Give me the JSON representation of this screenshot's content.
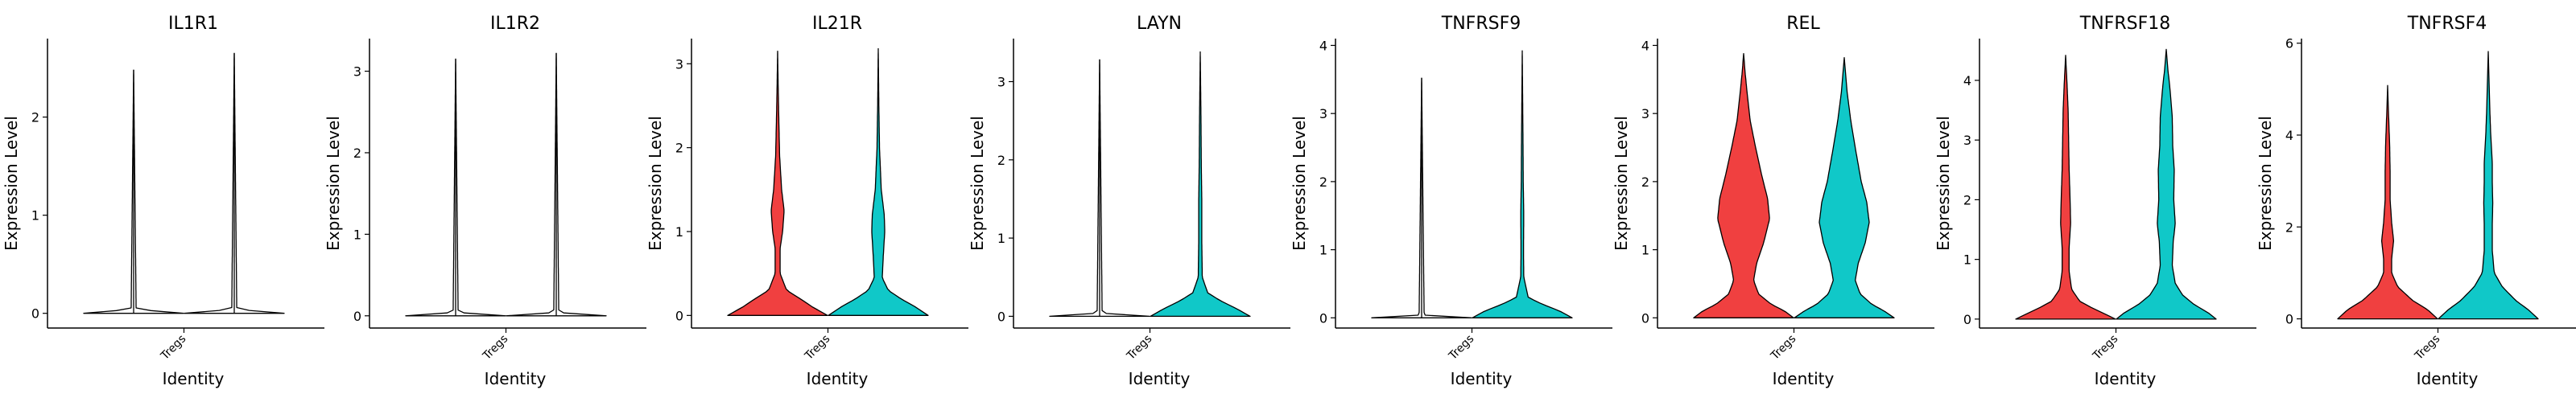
{
  "chart_data": [
    {
      "type": "violin",
      "title": "IL1R1",
      "xlabel": "Identity",
      "ylabel": "Expression Level",
      "categories": [
        "Tregs"
      ],
      "ylim": [
        -0.15,
        2.8
      ],
      "yticks": [
        0,
        1,
        2
      ],
      "series": [
        {
          "color": "#F04040",
          "max": 2.48,
          "profile": [
            [
              0,
              1.0
            ],
            [
              0.04,
              0.05
            ],
            [
              2.48,
              0.0
            ]
          ]
        },
        {
          "color": "#10C8C8",
          "max": 2.65,
          "profile": [
            [
              0,
              1.0
            ],
            [
              0.04,
              0.05
            ],
            [
              2.65,
              0.0
            ]
          ]
        }
      ]
    },
    {
      "type": "violin",
      "title": "IL1R2",
      "xlabel": "Identity",
      "ylabel": "Expression Level",
      "categories": [
        "Tregs"
      ],
      "ylim": [
        -0.15,
        3.4
      ],
      "yticks": [
        0,
        1,
        2,
        3
      ],
      "series": [
        {
          "color": "#F04040",
          "max": 3.15,
          "profile": [
            [
              0,
              1.0
            ],
            [
              0.04,
              0.05
            ],
            [
              3.15,
              0.0
            ]
          ]
        },
        {
          "color": "#10C8C8",
          "max": 3.22,
          "profile": [
            [
              0,
              1.0
            ],
            [
              0.04,
              0.05
            ],
            [
              3.22,
              0.0
            ]
          ]
        }
      ]
    },
    {
      "type": "violin",
      "title": "IL21R",
      "xlabel": "Identity",
      "ylabel": "Expression Level",
      "categories": [
        "Tregs"
      ],
      "ylim": [
        -0.15,
        3.3
      ],
      "yticks": [
        0,
        1,
        2,
        3
      ],
      "series": [
        {
          "color": "#F04040",
          "max": 3.15,
          "profile": [
            [
              0,
              1.0
            ],
            [
              0.1,
              0.7
            ],
            [
              0.2,
              0.45
            ],
            [
              0.3,
              0.18
            ],
            [
              0.5,
              0.05
            ],
            [
              0.8,
              0.05
            ],
            [
              1.0,
              0.1
            ],
            [
              1.25,
              0.13
            ],
            [
              1.5,
              0.08
            ],
            [
              1.9,
              0.04
            ],
            [
              2.3,
              0.025
            ],
            [
              2.7,
              0.012
            ],
            [
              3.15,
              0.0
            ]
          ]
        },
        {
          "color": "#10C8C8",
          "max": 3.18,
          "profile": [
            [
              0,
              1.0
            ],
            [
              0.1,
              0.75
            ],
            [
              0.2,
              0.45
            ],
            [
              0.3,
              0.2
            ],
            [
              0.45,
              0.08
            ],
            [
              0.7,
              0.1
            ],
            [
              1.0,
              0.13
            ],
            [
              1.2,
              0.12
            ],
            [
              1.5,
              0.06
            ],
            [
              2.0,
              0.025
            ],
            [
              2.5,
              0.012
            ],
            [
              3.18,
              0.0
            ]
          ]
        }
      ]
    },
    {
      "type": "violin",
      "title": "LAYN",
      "xlabel": "Identity",
      "ylabel": "Expression Level",
      "categories": [
        "Tregs"
      ],
      "ylim": [
        -0.15,
        3.55
      ],
      "yticks": [
        0,
        1,
        2,
        3
      ],
      "series": [
        {
          "color": "#F04040",
          "max": 3.28,
          "profile": [
            [
              0,
              1.0
            ],
            [
              0.04,
              0.05
            ],
            [
              3.28,
              0.0
            ]
          ]
        },
        {
          "color": "#10C8C8",
          "max": 3.38,
          "profile": [
            [
              0,
              1.0
            ],
            [
              0.1,
              0.72
            ],
            [
              0.2,
              0.4
            ],
            [
              0.3,
              0.15
            ],
            [
              0.5,
              0.04
            ],
            [
              1.0,
              0.03
            ],
            [
              1.5,
              0.03
            ],
            [
              2.0,
              0.02
            ],
            [
              2.5,
              0.015
            ],
            [
              3.38,
              0.0
            ]
          ]
        }
      ]
    },
    {
      "type": "violin",
      "title": "TNFRSF9",
      "xlabel": "Identity",
      "ylabel": "Expression Level",
      "categories": [
        "Tregs"
      ],
      "ylim": [
        -0.15,
        4.1
      ],
      "yticks": [
        0,
        1,
        2,
        3,
        4
      ],
      "series": [
        {
          "color": "#F04040",
          "max": 3.52,
          "profile": [
            [
              0,
              1.0
            ],
            [
              0.04,
              0.05
            ],
            [
              3.52,
              0.0
            ]
          ]
        },
        {
          "color": "#10C8C8",
          "max": 3.92,
          "profile": [
            [
              0,
              1.0
            ],
            [
              0.1,
              0.75
            ],
            [
              0.2,
              0.4
            ],
            [
              0.3,
              0.12
            ],
            [
              0.6,
              0.03
            ],
            [
              1.0,
              0.025
            ],
            [
              1.5,
              0.03
            ],
            [
              2.0,
              0.02
            ],
            [
              2.6,
              0.015
            ],
            [
              3.92,
              0.0
            ]
          ]
        }
      ]
    },
    {
      "type": "violin",
      "title": "REL",
      "xlabel": "Identity",
      "ylabel": "Expression Level",
      "categories": [
        "Tregs"
      ],
      "ylim": [
        -0.15,
        4.1
      ],
      "yticks": [
        0,
        1,
        2,
        3,
        4
      ],
      "series": [
        {
          "color": "#F04040",
          "max": 3.88,
          "profile": [
            [
              0,
              1.0
            ],
            [
              0.1,
              0.82
            ],
            [
              0.2,
              0.55
            ],
            [
              0.35,
              0.3
            ],
            [
              0.55,
              0.2
            ],
            [
              0.8,
              0.26
            ],
            [
              1.1,
              0.4
            ],
            [
              1.45,
              0.52
            ],
            [
              1.75,
              0.48
            ],
            [
              2.1,
              0.36
            ],
            [
              2.5,
              0.24
            ],
            [
              2.9,
              0.13
            ],
            [
              3.3,
              0.07
            ],
            [
              3.6,
              0.03
            ],
            [
              3.88,
              0.0
            ]
          ]
        },
        {
          "color": "#10C8C8",
          "max": 3.82,
          "profile": [
            [
              0,
              1.0
            ],
            [
              0.1,
              0.8
            ],
            [
              0.2,
              0.55
            ],
            [
              0.35,
              0.32
            ],
            [
              0.55,
              0.22
            ],
            [
              0.8,
              0.28
            ],
            [
              1.1,
              0.42
            ],
            [
              1.4,
              0.5
            ],
            [
              1.7,
              0.45
            ],
            [
              2.0,
              0.34
            ],
            [
              2.5,
              0.22
            ],
            [
              2.9,
              0.13
            ],
            [
              3.3,
              0.06
            ],
            [
              3.82,
              0.0
            ]
          ]
        }
      ]
    },
    {
      "type": "violin",
      "title": "TNFRSF18",
      "xlabel": "Identity",
      "ylabel": "Expression Level",
      "categories": [
        "Tregs"
      ],
      "ylim": [
        -0.15,
        4.7
      ],
      "yticks": [
        0,
        1,
        2,
        3,
        4
      ],
      "series": [
        {
          "color": "#F04040",
          "max": 4.42,
          "profile": [
            [
              0,
              1.0
            ],
            [
              0.1,
              0.75
            ],
            [
              0.2,
              0.5
            ],
            [
              0.3,
              0.28
            ],
            [
              0.5,
              0.12
            ],
            [
              0.8,
              0.07
            ],
            [
              1.2,
              0.07
            ],
            [
              1.6,
              0.1
            ],
            [
              2.0,
              0.09
            ],
            [
              2.5,
              0.07
            ],
            [
              3.0,
              0.06
            ],
            [
              3.5,
              0.05
            ],
            [
              4.0,
              0.025
            ],
            [
              4.42,
              0.0
            ]
          ]
        },
        {
          "color": "#10C8C8",
          "max": 4.52,
          "profile": [
            [
              0,
              1.0
            ],
            [
              0.1,
              0.85
            ],
            [
              0.25,
              0.55
            ],
            [
              0.4,
              0.33
            ],
            [
              0.6,
              0.18
            ],
            [
              0.9,
              0.12
            ],
            [
              1.3,
              0.14
            ],
            [
              1.6,
              0.18
            ],
            [
              2.0,
              0.15
            ],
            [
              2.5,
              0.16
            ],
            [
              2.9,
              0.13
            ],
            [
              3.4,
              0.12
            ],
            [
              3.9,
              0.07
            ],
            [
              4.2,
              0.03
            ],
            [
              4.52,
              0.0
            ]
          ]
        }
      ]
    },
    {
      "type": "violin",
      "title": "TNFRSF4",
      "xlabel": "Identity",
      "ylabel": "Expression Level",
      "categories": [
        "Tregs"
      ],
      "ylim": [
        -0.2,
        6.1
      ],
      "yticks": [
        0,
        2,
        4,
        6
      ],
      "series": [
        {
          "color": "#F04040",
          "max": 5.08,
          "profile": [
            [
              0,
              1.0
            ],
            [
              0.2,
              0.8
            ],
            [
              0.4,
              0.5
            ],
            [
              0.7,
              0.2
            ],
            [
              1.0,
              0.08
            ],
            [
              1.3,
              0.08
            ],
            [
              1.7,
              0.12
            ],
            [
              2.1,
              0.08
            ],
            [
              2.6,
              0.05
            ],
            [
              3.2,
              0.05
            ],
            [
              3.8,
              0.04
            ],
            [
              4.4,
              0.02
            ],
            [
              5.08,
              0.0
            ]
          ]
        },
        {
          "color": "#10C8C8",
          "max": 5.82,
          "profile": [
            [
              0,
              1.0
            ],
            [
              0.2,
              0.8
            ],
            [
              0.4,
              0.55
            ],
            [
              0.7,
              0.28
            ],
            [
              1.0,
              0.12
            ],
            [
              1.5,
              0.08
            ],
            [
              2.0,
              0.08
            ],
            [
              2.5,
              0.09
            ],
            [
              3.0,
              0.08
            ],
            [
              3.4,
              0.08
            ],
            [
              4.0,
              0.05
            ],
            [
              4.6,
              0.03
            ],
            [
              5.2,
              0.015
            ],
            [
              5.82,
              0.0
            ]
          ]
        }
      ]
    }
  ]
}
